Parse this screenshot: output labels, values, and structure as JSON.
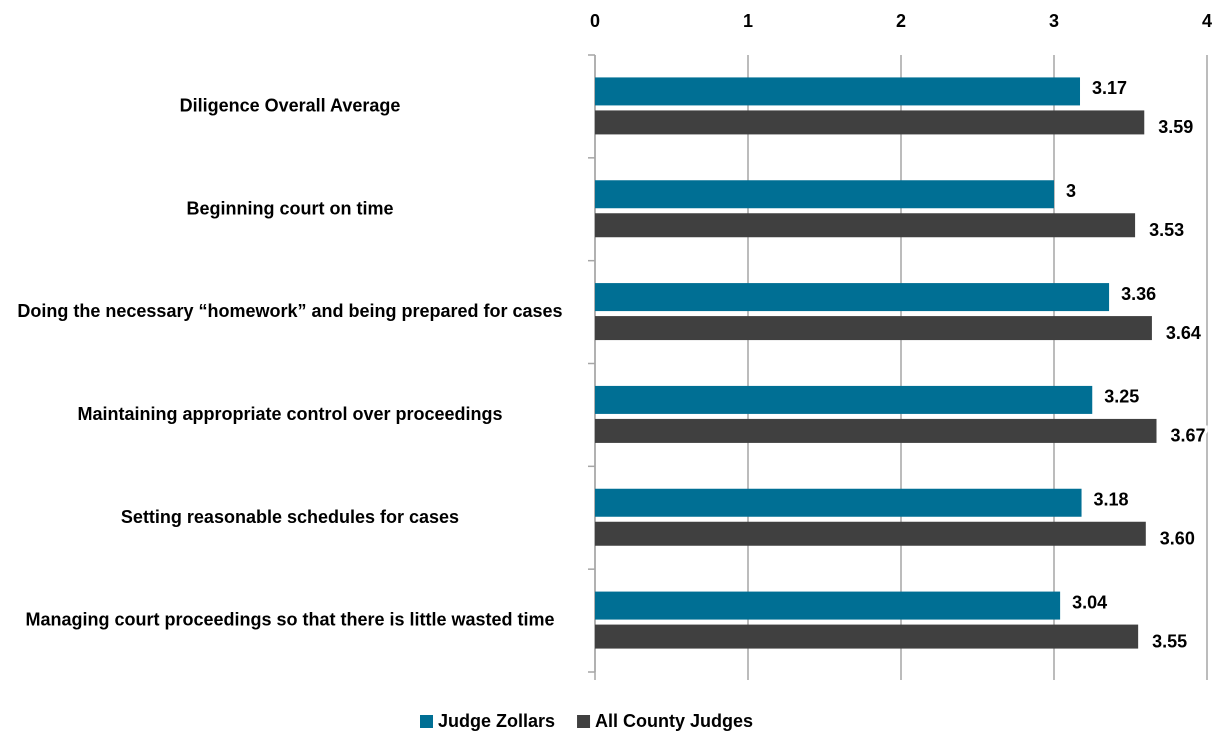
{
  "chart_data": {
    "type": "barh",
    "categories": [
      "Diligence Overall Average",
      "Beginning court on time",
      "Doing the necessary “homework” and being prepared for cases",
      "Maintaining appropriate control over proceedings",
      "Setting reasonable schedules for cases",
      "Managing court proceedings so that there is little wasted time"
    ],
    "series": [
      {
        "name": "Judge Zollars",
        "color": "#006f94",
        "values": [
          3.17,
          3,
          3.36,
          3.25,
          3.18,
          3.04
        ],
        "value_labels": [
          "3.17",
          "3",
          "3.36",
          "3.25",
          "3.18",
          "3.04"
        ]
      },
      {
        "name": "All County Judges",
        "color": "#404040",
        "values": [
          3.59,
          3.53,
          3.64,
          3.67,
          3.6,
          3.55
        ],
        "value_labels": [
          "3.59",
          "3.53",
          "3.64",
          "3.67",
          "3.60",
          "3.55"
        ]
      }
    ],
    "xlim": [
      0,
      4
    ],
    "xticks": [
      0,
      1,
      2,
      3,
      4
    ],
    "grid": true,
    "legend": "bottom"
  }
}
